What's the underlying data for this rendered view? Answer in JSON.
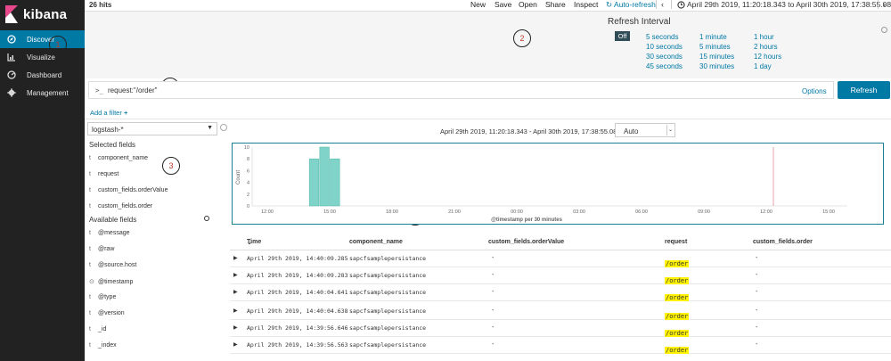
{
  "app": {
    "name": "kibana",
    "nav": [
      {
        "label": "Discover",
        "icon": "compass-icon",
        "active": true
      },
      {
        "label": "Visualize",
        "icon": "bar-chart-icon",
        "active": false
      },
      {
        "label": "Dashboard",
        "icon": "dashboard-icon",
        "active": false
      },
      {
        "label": "Management",
        "icon": "gear-icon",
        "active": false
      }
    ]
  },
  "topbar": {
    "hits": "26 hits",
    "menu": [
      "New",
      "Save",
      "Open",
      "Share",
      "Inspect"
    ],
    "auto_refresh": "Auto-refresh",
    "prev": "‹",
    "next": "›",
    "time_range": "April 29th 2019, 11:20:18.343 to April 30th 2019, 17:38:55.089"
  },
  "refresh_interval": {
    "title": "Refresh Interval",
    "off": "Off",
    "columns": [
      [
        "5 seconds",
        "10 seconds",
        "30 seconds",
        "45 seconds"
      ],
      [
        "1 minute",
        "5 minutes",
        "15 minutes",
        "30 minutes"
      ],
      [
        "1 hour",
        "2 hours",
        "12 hours",
        "1 day"
      ]
    ]
  },
  "annotations": [
    "1",
    "2",
    "3",
    "4",
    "5"
  ],
  "query": {
    "prompt": ">_",
    "value": "request:\"/order\"",
    "options": "Options",
    "refresh": "Refresh",
    "add_filter": "Add a filter"
  },
  "fields": {
    "index_pattern": "logstash-*",
    "selected_title": "Selected fields",
    "selected": [
      {
        "type": "t",
        "name": "component_name"
      },
      {
        "type": "t",
        "name": "request"
      },
      {
        "type": "t",
        "name": "custom_fields.orderValue"
      },
      {
        "type": "t",
        "name": "custom_fields.order"
      }
    ],
    "available_title": "Available fields",
    "available": [
      {
        "type": "t",
        "name": "@message"
      },
      {
        "type": "t",
        "name": "@raw"
      },
      {
        "type": "t",
        "name": "@source.host"
      },
      {
        "type": "clock",
        "name": "@timestamp"
      },
      {
        "type": "t",
        "name": "@type"
      },
      {
        "type": "t",
        "name": "@version"
      },
      {
        "type": "t",
        "name": "_id"
      },
      {
        "type": "t",
        "name": "_index"
      }
    ]
  },
  "histogram": {
    "range_label": "April 29th 2019, 11:20:18.343 - April 30th 2019, 17:38:55.089 —",
    "interval": "Auto"
  },
  "chart_data": {
    "type": "bar",
    "title": "",
    "ylabel": "Count",
    "xlabel": "@timestamp per 30 minutes",
    "ylim": [
      0,
      10
    ],
    "yticks": [
      0,
      2,
      4,
      6,
      8,
      10
    ],
    "xticks": [
      "12:00",
      "15:00",
      "18:00",
      "21:00",
      "00:00",
      "03:00",
      "06:00",
      "09:00",
      "12:00",
      "15:00"
    ],
    "bars": [
      {
        "x": "April 29th 2019, 14:00",
        "y": 8
      },
      {
        "x": "April 29th 2019, 14:30",
        "y": 10
      },
      {
        "x": "April 29th 2019, 15:00",
        "y": 8
      }
    ],
    "bar_color": "#7fd3c8",
    "marker_color": "#e8a0b0",
    "grid": false
  },
  "table": {
    "columns": [
      "Time",
      "component_name",
      "custom_fields.orderValue",
      "request",
      "custom_fields.order"
    ],
    "rows": [
      {
        "time": "April 29th 2019, 14:40:09.285",
        "component": "sapcfsamplepersistance",
        "orderValue": "-",
        "request": "/order",
        "order": "-"
      },
      {
        "time": "April 29th 2019, 14:40:09.283",
        "component": "sapcfsamplepersistance",
        "orderValue": "-",
        "request": "/order",
        "order": "-"
      },
      {
        "time": "April 29th 2019, 14:40:04.641",
        "component": "sapcfsamplepersistance",
        "orderValue": "-",
        "request": "/order",
        "order": "-"
      },
      {
        "time": "April 29th 2019, 14:40:04.638",
        "component": "sapcfsamplepersistance",
        "orderValue": "-",
        "request": "/order",
        "order": "-"
      },
      {
        "time": "April 29th 2019, 14:39:56.646",
        "component": "sapcfsamplepersistance",
        "orderValue": "-",
        "request": "/order",
        "order": "-"
      },
      {
        "time": "April 29th 2019, 14:39:56.563",
        "component": "sapcfsamplepersistance",
        "orderValue": "-",
        "request": "/order",
        "order": "-"
      }
    ]
  }
}
